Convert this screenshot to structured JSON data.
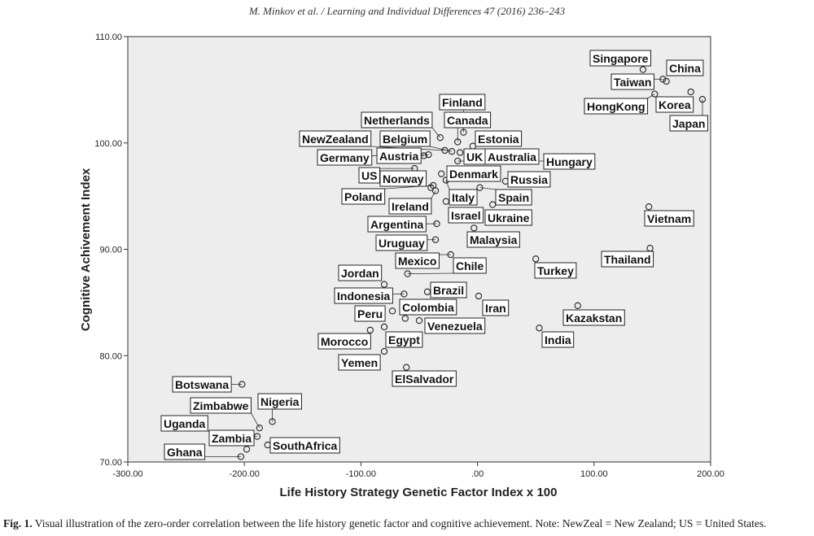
{
  "header": "M. Minkov et al. / Learning and Individual Differences 47 (2016) 236–243",
  "caption": {
    "label": "Fig. 1.",
    "text": "Visual illustration of the zero-order correlation between the life history genetic factor and cognitive achievement. Note: NewZeal = New Zealand; US = United States."
  },
  "chart_data": {
    "type": "scatter",
    "title": "",
    "xlabel": "Life History Strategy Genetic Factor Index x 100",
    "ylabel": "Cognitive Achivement Index",
    "xlim": [
      -300,
      200
    ],
    "ylim": [
      70,
      110
    ],
    "xticks": [
      -300,
      -200,
      -100,
      0,
      100,
      200
    ],
    "yticks": [
      70,
      80,
      90,
      100,
      110
    ],
    "xtick_labels": [
      "-300.00",
      "-200.00",
      "-100.00",
      ".00",
      "100.00",
      "200.00"
    ],
    "ytick_labels": [
      "70.00",
      "80.00",
      "90.00",
      "100.00",
      "110.00"
    ],
    "grid": false,
    "background": "#ededed",
    "points": [
      {
        "label": "Singapore",
        "x": 142,
        "y": 106.9
      },
      {
        "label": "China",
        "x": 162,
        "y": 105.8
      },
      {
        "label": "Taiwan",
        "x": 159,
        "y": 106.0
      },
      {
        "label": "HongKong",
        "x": 152,
        "y": 104.6
      },
      {
        "label": "Korea",
        "x": 183,
        "y": 104.8
      },
      {
        "label": "Japan",
        "x": 193,
        "y": 104.1
      },
      {
        "label": "Finland",
        "x": -12,
        "y": 101.0
      },
      {
        "label": "Netherlands",
        "x": -32,
        "y": 100.5
      },
      {
        "label": "Canada",
        "x": -17,
        "y": 100.1
      },
      {
        "label": "Estonia",
        "x": -4,
        "y": 99.7
      },
      {
        "label": "NewZealand",
        "x": -28,
        "y": 99.3
      },
      {
        "label": "Belgium",
        "x": -22,
        "y": 99.2
      },
      {
        "label": "Germany",
        "x": -46,
        "y": 98.8
      },
      {
        "label": "Austria",
        "x": -42,
        "y": 98.9
      },
      {
        "label": "UK",
        "x": -15,
        "y": 99.1
      },
      {
        "label": "Australia",
        "x": -6,
        "y": 98.7
      },
      {
        "label": "Hungary",
        "x": -17,
        "y": 98.3
      },
      {
        "label": "US",
        "x": -54,
        "y": 97.6
      },
      {
        "label": "Norway",
        "x": -40,
        "y": 95.8
      },
      {
        "label": "Denmark",
        "x": -31,
        "y": 97.1
      },
      {
        "label": "Russia",
        "x": 24,
        "y": 96.4
      },
      {
        "label": "Poland",
        "x": -38,
        "y": 96.0
      },
      {
        "label": "Italy",
        "x": -27,
        "y": 96.5
      },
      {
        "label": "Spain",
        "x": 2,
        "y": 95.8
      },
      {
        "label": "Ireland",
        "x": -36,
        "y": 95.5
      },
      {
        "label": "Israel",
        "x": -27,
        "y": 94.5
      },
      {
        "label": "Ukraine",
        "x": 13,
        "y": 94.2
      },
      {
        "label": "Argentina",
        "x": -35,
        "y": 92.4
      },
      {
        "label": "Malaysia",
        "x": -3,
        "y": 92.0
      },
      {
        "label": "Uruguay",
        "x": -36,
        "y": 90.9
      },
      {
        "label": "Mexico",
        "x": -23,
        "y": 89.5
      },
      {
        "label": "Chile",
        "x": -60,
        "y": 87.7
      },
      {
        "label": "Jordan",
        "x": -80,
        "y": 86.7
      },
      {
        "label": "Indonesia",
        "x": -63,
        "y": 85.8
      },
      {
        "label": "Brazil",
        "x": -43,
        "y": 86.0
      },
      {
        "label": "Iran",
        "x": 1,
        "y": 85.6
      },
      {
        "label": "Peru",
        "x": -73,
        "y": 84.2
      },
      {
        "label": "Colombia",
        "x": -62,
        "y": 83.5
      },
      {
        "label": "Venezuela",
        "x": -50,
        "y": 83.3
      },
      {
        "label": "Morocco",
        "x": -92,
        "y": 82.4
      },
      {
        "label": "Egypt",
        "x": -80,
        "y": 82.7
      },
      {
        "label": "Yemen",
        "x": -80,
        "y": 80.4
      },
      {
        "label": "ElSalvador",
        "x": -61,
        "y": 78.9
      },
      {
        "label": "Turkey",
        "x": 50,
        "y": 89.1
      },
      {
        "label": "Thailand",
        "x": 148,
        "y": 90.1
      },
      {
        "label": "Vietnam",
        "x": 147,
        "y": 94.0
      },
      {
        "label": "Kazakstan",
        "x": 86,
        "y": 84.7
      },
      {
        "label": "India",
        "x": 53,
        "y": 82.6
      },
      {
        "label": "Botswana",
        "x": -202,
        "y": 77.3
      },
      {
        "label": "Nigeria",
        "x": -176,
        "y": 73.8
      },
      {
        "label": "Zimbabwe",
        "x": -187,
        "y": 73.2
      },
      {
        "label": "Uganda",
        "x": -189,
        "y": 72.4
      },
      {
        "label": "Zambia",
        "x": -198,
        "y": 71.2
      },
      {
        "label": "SouthAfrica",
        "x": -180,
        "y": 71.6
      },
      {
        "label": "Ghana",
        "x": -203,
        "y": 70.5
      }
    ]
  }
}
